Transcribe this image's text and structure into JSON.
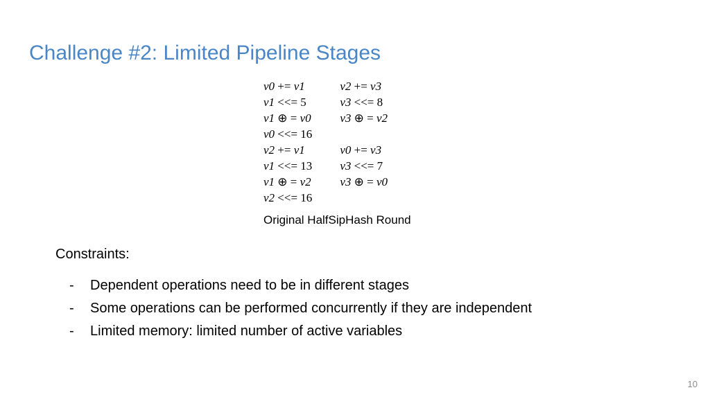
{
  "title_text": "Challenge #2: Limited Pipeline Stages",
  "title_color": "#4a86c7",
  "code": {
    "font_color": "#000000",
    "left_col": [
      [
        [
          "i",
          "v0"
        ],
        [
          "o",
          " += "
        ],
        [
          "i",
          "v1"
        ]
      ],
      [
        [
          "i",
          "v1"
        ],
        [
          "o",
          " <<= 5"
        ]
      ],
      [
        [
          "i",
          "v1"
        ],
        [
          "o",
          " ⊕ = "
        ],
        [
          "i",
          "v0"
        ]
      ],
      [
        [
          "i",
          "v0"
        ],
        [
          "o",
          " <<= 16"
        ]
      ],
      [
        [
          "i",
          "v2"
        ],
        [
          "o",
          " += "
        ],
        [
          "i",
          "v1"
        ]
      ],
      [
        [
          "i",
          "v1"
        ],
        [
          "o",
          " <<= 13"
        ]
      ],
      [
        [
          "i",
          "v1"
        ],
        [
          "o",
          " ⊕ = "
        ],
        [
          "i",
          "v2"
        ]
      ],
      [
        [
          "i",
          "v2"
        ],
        [
          "o",
          " <<= 16"
        ]
      ]
    ],
    "right_col": [
      [
        [
          "i",
          "v2"
        ],
        [
          "o",
          " += "
        ],
        [
          "i",
          "v3"
        ]
      ],
      [
        [
          "i",
          "v3"
        ],
        [
          "o",
          " <<= 8"
        ]
      ],
      [
        [
          "i",
          "v3"
        ],
        [
          "o",
          " ⊕ = "
        ],
        [
          "i",
          "v2"
        ]
      ],
      [
        [
          "o",
          " "
        ]
      ],
      [
        [
          "i",
          "v0"
        ],
        [
          "o",
          " += "
        ],
        [
          "i",
          "v3"
        ]
      ],
      [
        [
          "i",
          "v3"
        ],
        [
          "o",
          " <<= 7"
        ]
      ],
      [
        [
          "i",
          "v3"
        ],
        [
          "o",
          " ⊕ = "
        ],
        [
          "i",
          "v0"
        ]
      ]
    ]
  },
  "caption": "Original HalfSipHash Round",
  "constraints_heading": "Constraints:",
  "constraints": [
    "Dependent operations need to be in different stages",
    "Some operations can be performed concurrently if they are independent",
    "Limited memory: limited number of active variables"
  ],
  "page_number": "10",
  "pagenum_color": "#8c8c8c",
  "body_color": "#000000"
}
